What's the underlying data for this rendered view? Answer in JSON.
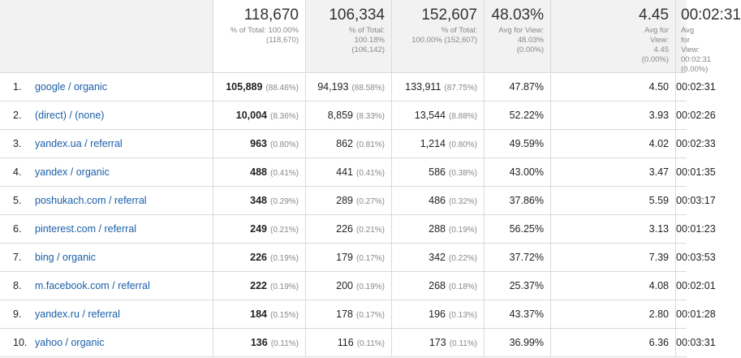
{
  "summary": [
    {
      "value": "118,670",
      "sub": [
        "% of Total: 100.00%",
        "(118,670)"
      ]
    },
    {
      "value": "106,334",
      "sub": [
        "% of Total:",
        "100.18%",
        "(106,142)"
      ]
    },
    {
      "value": "152,607",
      "sub": [
        "% of Total:",
        "100.00% (152,607)"
      ]
    },
    {
      "value": "48.03%",
      "sub": [
        "Avg for View:",
        "48.03%",
        "(0.00%)"
      ]
    },
    {
      "value": "4.45",
      "sub": [
        "Avg for",
        "View:",
        "4.45",
        "(0.00%)"
      ]
    },
    {
      "value": "00:02:31",
      "sub": [
        "Avg for View:",
        "00:02:31",
        "(0.00%)"
      ]
    }
  ],
  "rows": [
    {
      "num": "1.",
      "source": "google / organic",
      "m1": "105,889",
      "p1": "(88.46%)",
      "m2": "94,193",
      "p2": "(88.58%)",
      "m3": "133,911",
      "p3": "(87.75%)",
      "m4": "47.87%",
      "m5": "4.50",
      "m6": "00:02:31"
    },
    {
      "num": "2.",
      "source": "(direct) / (none)",
      "m1": "10,004",
      "p1": "(8.36%)",
      "m2": "8,859",
      "p2": "(8.33%)",
      "m3": "13,544",
      "p3": "(8.88%)",
      "m4": "52.22%",
      "m5": "3.93",
      "m6": "00:02:26"
    },
    {
      "num": "3.",
      "source": "yandex.ua / referral",
      "m1": "963",
      "p1": "(0.80%)",
      "m2": "862",
      "p2": "(0.81%)",
      "m3": "1,214",
      "p3": "(0.80%)",
      "m4": "49.59%",
      "m5": "4.02",
      "m6": "00:02:33"
    },
    {
      "num": "4.",
      "source": "yandex / organic",
      "m1": "488",
      "p1": "(0.41%)",
      "m2": "441",
      "p2": "(0.41%)",
      "m3": "586",
      "p3": "(0.38%)",
      "m4": "43.00%",
      "m5": "3.47",
      "m6": "00:01:35"
    },
    {
      "num": "5.",
      "source": "poshukach.com / referral",
      "m1": "348",
      "p1": "(0.29%)",
      "m2": "289",
      "p2": "(0.27%)",
      "m3": "486",
      "p3": "(0.32%)",
      "m4": "37.86%",
      "m5": "5.59",
      "m6": "00:03:17"
    },
    {
      "num": "6.",
      "source": "pinterest.com / referral",
      "m1": "249",
      "p1": "(0.21%)",
      "m2": "226",
      "p2": "(0.21%)",
      "m3": "288",
      "p3": "(0.19%)",
      "m4": "56.25%",
      "m5": "3.13",
      "m6": "00:01:23"
    },
    {
      "num": "7.",
      "source": "bing / organic",
      "m1": "226",
      "p1": "(0.19%)",
      "m2": "179",
      "p2": "(0.17%)",
      "m3": "342",
      "p3": "(0.22%)",
      "m4": "37.72%",
      "m5": "7.39",
      "m6": "00:03:53"
    },
    {
      "num": "8.",
      "source": "m.facebook.com / referral",
      "m1": "222",
      "p1": "(0.19%)",
      "m2": "200",
      "p2": "(0.19%)",
      "m3": "268",
      "p3": "(0.18%)",
      "m4": "25.37%",
      "m5": "4.08",
      "m6": "00:02:01"
    },
    {
      "num": "9.",
      "source": "yandex.ru / referral",
      "m1": "184",
      "p1": "(0.15%)",
      "m2": "178",
      "p2": "(0.17%)",
      "m3": "196",
      "p3": "(0.13%)",
      "m4": "43.37%",
      "m5": "2.80",
      "m6": "00:01:28"
    },
    {
      "num": "10.",
      "source": "yahoo / organic",
      "m1": "136",
      "p1": "(0.11%)",
      "m2": "116",
      "p2": "(0.11%)",
      "m3": "173",
      "p3": "(0.11%)",
      "m4": "36.99%",
      "m5": "6.36",
      "m6": "00:03:31"
    }
  ]
}
